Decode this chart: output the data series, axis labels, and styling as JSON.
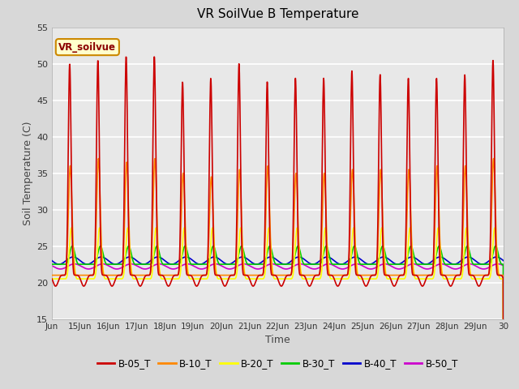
{
  "title": "VR SoilVue B Temperature",
  "xlabel": "Time",
  "ylabel": "Soil Temperature (C)",
  "ylim": [
    15,
    55
  ],
  "xlim": [
    14,
    30
  ],
  "xtick_labels": [
    "Jun",
    "15Jun",
    "16Jun",
    "17Jun",
    "18Jun",
    "19Jun",
    "20Jun",
    "21Jun",
    "22Jun",
    "23Jun",
    "24Jun",
    "25Jun",
    "26Jun",
    "27Jun",
    "28Jun",
    "29Jun",
    "30"
  ],
  "xtick_positions": [
    14,
    15,
    16,
    17,
    18,
    19,
    20,
    21,
    22,
    23,
    24,
    25,
    26,
    27,
    28,
    29,
    30
  ],
  "ytick_positions": [
    15,
    20,
    25,
    30,
    35,
    40,
    45,
    50,
    55
  ],
  "figure_bg": "#d8d8d8",
  "plot_bg": "#e8e8e8",
  "grid_color": "#ffffff",
  "legend_label": "VR_soilvue",
  "series_colors": [
    "#cc0000",
    "#ff8800",
    "#ffff00",
    "#00cc00",
    "#0000cc",
    "#cc00cc"
  ],
  "series_names": [
    "B-05_T",
    "B-10_T",
    "B-20_T",
    "B-30_T",
    "B-40_T",
    "B-50_T"
  ],
  "linewidth": 1.2
}
